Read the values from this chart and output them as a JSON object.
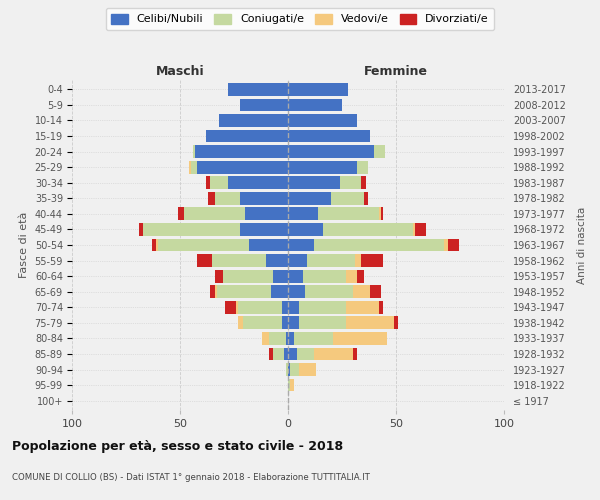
{
  "age_groups": [
    "100+",
    "95-99",
    "90-94",
    "85-89",
    "80-84",
    "75-79",
    "70-74",
    "65-69",
    "60-64",
    "55-59",
    "50-54",
    "45-49",
    "40-44",
    "35-39",
    "30-34",
    "25-29",
    "20-24",
    "15-19",
    "10-14",
    "5-9",
    "0-4"
  ],
  "birth_years": [
    "≤ 1917",
    "1918-1922",
    "1923-1927",
    "1928-1932",
    "1933-1937",
    "1938-1942",
    "1943-1947",
    "1948-1952",
    "1953-1957",
    "1958-1962",
    "1963-1967",
    "1968-1972",
    "1973-1977",
    "1978-1982",
    "1983-1987",
    "1988-1992",
    "1993-1997",
    "1998-2002",
    "2003-2007",
    "2008-2012",
    "2013-2017"
  ],
  "maschi_celibi": [
    0,
    0,
    0,
    2,
    1,
    3,
    3,
    8,
    7,
    10,
    18,
    22,
    20,
    22,
    28,
    42,
    43,
    38,
    32,
    22,
    28
  ],
  "maschi_coniugati": [
    0,
    0,
    1,
    5,
    8,
    18,
    20,
    25,
    23,
    25,
    42,
    45,
    28,
    12,
    8,
    3,
    1,
    0,
    0,
    0,
    0
  ],
  "maschi_vedovi": [
    0,
    0,
    0,
    0,
    3,
    2,
    1,
    1,
    0,
    0,
    1,
    0,
    0,
    0,
    0,
    1,
    0,
    0,
    0,
    0,
    0
  ],
  "maschi_divorziati": [
    0,
    0,
    0,
    2,
    0,
    0,
    5,
    2,
    4,
    7,
    2,
    2,
    3,
    3,
    2,
    0,
    0,
    0,
    0,
    0,
    0
  ],
  "femmine_celibi": [
    0,
    0,
    1,
    4,
    3,
    5,
    5,
    8,
    7,
    9,
    12,
    16,
    14,
    20,
    24,
    32,
    40,
    38,
    32,
    25,
    28
  ],
  "femmine_coniugati": [
    0,
    1,
    4,
    8,
    18,
    22,
    22,
    22,
    20,
    22,
    60,
    42,
    28,
    15,
    10,
    5,
    5,
    0,
    0,
    0,
    0
  ],
  "femmine_vedovi": [
    0,
    2,
    8,
    18,
    25,
    22,
    15,
    8,
    5,
    3,
    2,
    1,
    1,
    0,
    0,
    0,
    0,
    0,
    0,
    0,
    0
  ],
  "femmine_divorziati": [
    0,
    0,
    0,
    2,
    0,
    2,
    2,
    5,
    3,
    10,
    5,
    5,
    1,
    2,
    2,
    0,
    0,
    0,
    0,
    0,
    0
  ],
  "colors": {
    "celibi": "#4472c4",
    "coniugati": "#c5d9a0",
    "vedovi": "#f5c97e",
    "divorziati": "#cc2222"
  },
  "xlim": 100,
  "title_main": "Popolazione per età, sesso e stato civile - 2018",
  "title_sub": "COMUNE DI COLLIO (BS) - Dati ISTAT 1° gennaio 2018 - Elaborazione TUTTITALIA.IT",
  "ylabel": "Fasce di età",
  "ylabel_right": "Anni di nascita",
  "xlabel_left": "Maschi",
  "xlabel_right": "Femmine",
  "bg_color": "#f0f0f0",
  "bar_bg": "#ffffff"
}
